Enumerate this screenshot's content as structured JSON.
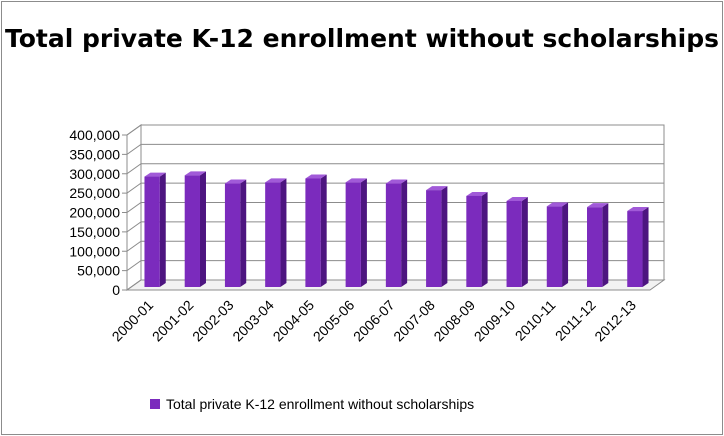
{
  "chart_data": {
    "type": "bar",
    "title": "Total private K-12 enrollment without scholarships",
    "categories": [
      "2000-01",
      "2001-02",
      "2002-03",
      "2003-04",
      "2004-05",
      "2005-06",
      "2006-07",
      "2007-08",
      "2008-09",
      "2009-10",
      "2010-11",
      "2011-12",
      "2012-13"
    ],
    "series": [
      {
        "name": "Total private K-12 enrollment without scholarships",
        "values": [
          285000,
          288000,
          267000,
          270000,
          280000,
          270000,
          267000,
          250000,
          235000,
          222000,
          208000,
          206000,
          196000
        ],
        "color": "#7b2bbd"
      }
    ],
    "yticks": [
      "0",
      "50,000",
      "100,000",
      "150,000",
      "200,000",
      "250,000",
      "300,000",
      "350,000",
      "400,000"
    ],
    "ylim": [
      0,
      400000
    ],
    "grid": true,
    "legend_position": "bottom",
    "style": "3d-column"
  }
}
